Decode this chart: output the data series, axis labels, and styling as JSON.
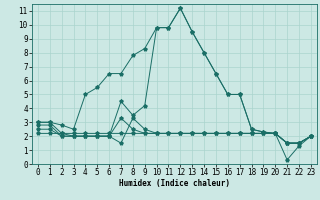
{
  "xlabel": "Humidex (Indice chaleur)",
  "bg_color": "#cce8e4",
  "line_color": "#1a6e66",
  "grid_color": "#aad4ce",
  "xlim": [
    -0.5,
    23.5
  ],
  "ylim": [
    0,
    11.5
  ],
  "xticks": [
    0,
    1,
    2,
    3,
    4,
    5,
    6,
    7,
    8,
    9,
    10,
    11,
    12,
    13,
    14,
    15,
    16,
    17,
    18,
    19,
    20,
    21,
    22,
    23
  ],
  "yticks": [
    0,
    1,
    2,
    3,
    4,
    5,
    6,
    7,
    8,
    9,
    10,
    11
  ],
  "line1_x": [
    0,
    1,
    2,
    3,
    4,
    5,
    6,
    7,
    8,
    9,
    10,
    11,
    12,
    13,
    14,
    15,
    16,
    17,
    18,
    19,
    20,
    21,
    22,
    23
  ],
  "line1_y": [
    3.0,
    3.0,
    2.8,
    2.5,
    5.0,
    5.5,
    6.5,
    6.5,
    7.8,
    8.3,
    9.8,
    9.8,
    11.2,
    9.5,
    8.0,
    6.5,
    5.0,
    5.0,
    2.5,
    2.3,
    2.2,
    0.3,
    1.3,
    2.0
  ],
  "line2_x": [
    0,
    1,
    2,
    3,
    4,
    5,
    6,
    7,
    8,
    9,
    10,
    11,
    12,
    13,
    14,
    15,
    16,
    17,
    18,
    19,
    20,
    21,
    22,
    23
  ],
  "line2_y": [
    2.2,
    2.2,
    2.2,
    2.2,
    2.2,
    2.2,
    2.2,
    2.2,
    2.2,
    2.2,
    2.2,
    2.2,
    2.2,
    2.2,
    2.2,
    2.2,
    2.2,
    2.2,
    2.2,
    2.2,
    2.2,
    1.5,
    1.5,
    2.0
  ],
  "line3_x": [
    0,
    1,
    2,
    3,
    4,
    5,
    6,
    7,
    8,
    9,
    10,
    11,
    12,
    13,
    14,
    15,
    16,
    17,
    18,
    19,
    20,
    21,
    22,
    23
  ],
  "line3_y": [
    3.0,
    3.0,
    2.2,
    2.0,
    2.0,
    2.0,
    2.0,
    4.5,
    3.5,
    4.2,
    9.8,
    9.8,
    11.2,
    9.5,
    8.0,
    6.5,
    5.0,
    5.0,
    2.5,
    2.3,
    2.2,
    1.5,
    1.5,
    2.0
  ],
  "line4_x": [
    0,
    1,
    2,
    3,
    4,
    5,
    6,
    7,
    8,
    9,
    10,
    11,
    12,
    13,
    14,
    15,
    16,
    17,
    18,
    19,
    20,
    21,
    22,
    23
  ],
  "line4_y": [
    2.5,
    2.5,
    2.0,
    2.0,
    2.0,
    2.0,
    2.0,
    1.5,
    3.3,
    2.5,
    2.2,
    2.2,
    2.2,
    2.2,
    2.2,
    2.2,
    2.2,
    2.2,
    2.2,
    2.2,
    2.2,
    1.5,
    1.5,
    2.0
  ],
  "line5_x": [
    0,
    1,
    2,
    3,
    4,
    5,
    6,
    7,
    8,
    9,
    10,
    11,
    12,
    13,
    14,
    15,
    16,
    17,
    18,
    19,
    20,
    21,
    22,
    23
  ],
  "line5_y": [
    2.8,
    2.8,
    2.0,
    2.0,
    2.0,
    2.0,
    2.0,
    3.3,
    2.5,
    2.2,
    2.2,
    2.2,
    2.2,
    2.2,
    2.2,
    2.2,
    2.2,
    2.2,
    2.2,
    2.2,
    2.2,
    1.5,
    1.5,
    2.0
  ]
}
